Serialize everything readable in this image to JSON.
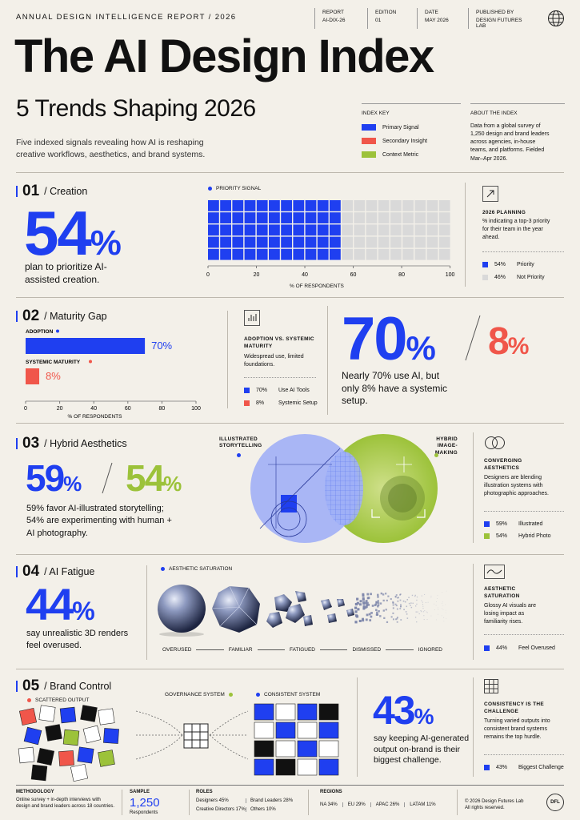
{
  "header": {
    "overline": "ANNUAL DESIGN INTELLIGENCE REPORT / 2026",
    "meta": [
      {
        "k": "REPORT",
        "v": "AI-DIX-26"
      },
      {
        "k": "EDITION",
        "v": "01"
      },
      {
        "k": "DATE",
        "v": "MAY 2026"
      },
      {
        "k": "PUBLISHED BY",
        "v": "DESIGN FUTURES LAB"
      }
    ],
    "title": "The AI Design Index",
    "subtitle": "5 Trends Shaping 2026",
    "intro": "Five indexed signals revealing how AI is reshaping creative workflows, aesthetics, and brand systems."
  },
  "index_key": {
    "heading": "INDEX KEY",
    "items": [
      {
        "label": "Primary Signal",
        "color": "#1f3ff0"
      },
      {
        "label": "Secondary Insight",
        "color": "#f0564a"
      },
      {
        "label": "Context Metric",
        "color": "#9cc23a"
      }
    ]
  },
  "about": {
    "heading": "ABOUT THE INDEX",
    "text": "Data from a global survey of 1,250 design and brand leaders across agencies, in-house teams, and platforms. Fielded Mar–Apr 2026."
  },
  "s1": {
    "num": "01",
    "title": "/ Creation",
    "big": "54",
    "pct": "%",
    "caption": "plan to prioritize AI-assisted creation.",
    "chart_title": "PRIORITY SIGNAL",
    "axis_label": "% OF RESPONDENTS",
    "side_title": "2026 PLANNING",
    "side_text": "% indicating a top-3 priority for their team in the year ahead.",
    "legend": [
      {
        "v": "54%",
        "label": "Priority"
      },
      {
        "v": "46%",
        "label": "Not Priority"
      }
    ]
  },
  "s2": {
    "num": "02",
    "title": "/ Maturity Gap",
    "side_title": "ADOPTION VS. SYSTEMIC MATURITY",
    "side_text": "Widespread use, limited foundations.",
    "legend": [
      {
        "v": "70%",
        "label": "Use AI Tools"
      },
      {
        "v": "8%",
        "label": "Systemic Setup"
      }
    ],
    "big_a": "70",
    "big_b": "8",
    "pct": "%",
    "caption": "Nearly 70% use AI, but only 8% have a systemic setup."
  },
  "s3": {
    "num": "03",
    "title": "/ Hybrid Aesthetics",
    "big_a": "59",
    "big_b": "54",
    "pct": "%",
    "caption": "59% favor AI-illustrated storytelling; 54% are experimenting with human + AI photography.",
    "label_left": "ILLUSTRATED STORYTELLING",
    "label_right": "HYBRID IMAGE-MAKING",
    "side_title": "CONVERGING AESTHETICS",
    "side_text": "Designers are blending illustration systems with photographic approaches.",
    "legend": [
      {
        "v": "59%",
        "label": "Illustrated"
      },
      {
        "v": "54%",
        "label": "Hybrid Photo"
      }
    ]
  },
  "s4": {
    "num": "04",
    "title": "/ AI Fatigue",
    "big": "44",
    "pct": "%",
    "caption": "say unrealistic 3D renders feel overused.",
    "chart_title": "AESTHETIC SATURATION",
    "stages": [
      "OVERUSED",
      "FAMILIAR",
      "FATIGUED",
      "DISMISSED",
      "IGNORED"
    ],
    "side_title": "AESTHETIC SATURATION",
    "side_text": "Glossy AI visuals are losing impact as familiarity rises.",
    "legend": [
      {
        "v": "44%",
        "label": "Feel Overused"
      }
    ]
  },
  "s5": {
    "num": "05",
    "title": "/ Brand Control",
    "scattered": "SCATTERED OUTPUT",
    "governance": "GOVERNANCE SYSTEM",
    "consistent": "CONSISTENT SYSTEM",
    "big": "43",
    "pct": "%",
    "caption": "say keeping AI-generated output on-brand is their biggest challenge.",
    "side_title": "CONSISTENCY IS THE CHALLENGE",
    "side_text": "Turning varied outputs into consistent brand systems remains the top hurdle.",
    "legend": [
      {
        "v": "43%",
        "label": "Biggest Challenge"
      }
    ]
  },
  "footer": {
    "methodology_h": "METHODOLOGY",
    "methodology": "Online survey + in-depth interviews with design and brand leaders across 18 countries.",
    "sample_h": "SAMPLE",
    "sample_v": "1,250",
    "sample_sub": "Respondents",
    "roles_h": "ROLES",
    "roles": [
      "Designers 45%",
      "Brand Leaders 28%",
      "Creative Directors 17%",
      "Others 10%"
    ],
    "regions_h": "REGIONS",
    "regions": [
      "NA 34%",
      "EU 29%",
      "APAC 26%",
      "LATAM 11%"
    ],
    "copyright": "© 2026 Design Futures Lab",
    "rights": "All rights reserved.",
    "logo": "DFL"
  },
  "chart_data": [
    {
      "type": "waffle",
      "title": "PRIORITY SIGNAL",
      "xlabel": "% OF RESPONDENTS",
      "ticks": [
        "0",
        "20",
        "40",
        "60",
        "80",
        "100"
      ],
      "series": [
        {
          "name": "Priority",
          "value": 54
        },
        {
          "name": "Not Priority",
          "value": 46
        }
      ],
      "xlim": [
        0,
        100
      ]
    },
    {
      "type": "bar",
      "categories": [
        "ADOPTION",
        "SYSTEMIC MATURITY"
      ],
      "values": [
        70,
        8
      ],
      "value_labels": [
        "70%",
        "8%"
      ],
      "xlabel": "% OF RESPONDENTS",
      "ticks": [
        "0",
        "20",
        "40",
        "60",
        "80",
        "100"
      ],
      "xlim": [
        0,
        100
      ]
    }
  ]
}
